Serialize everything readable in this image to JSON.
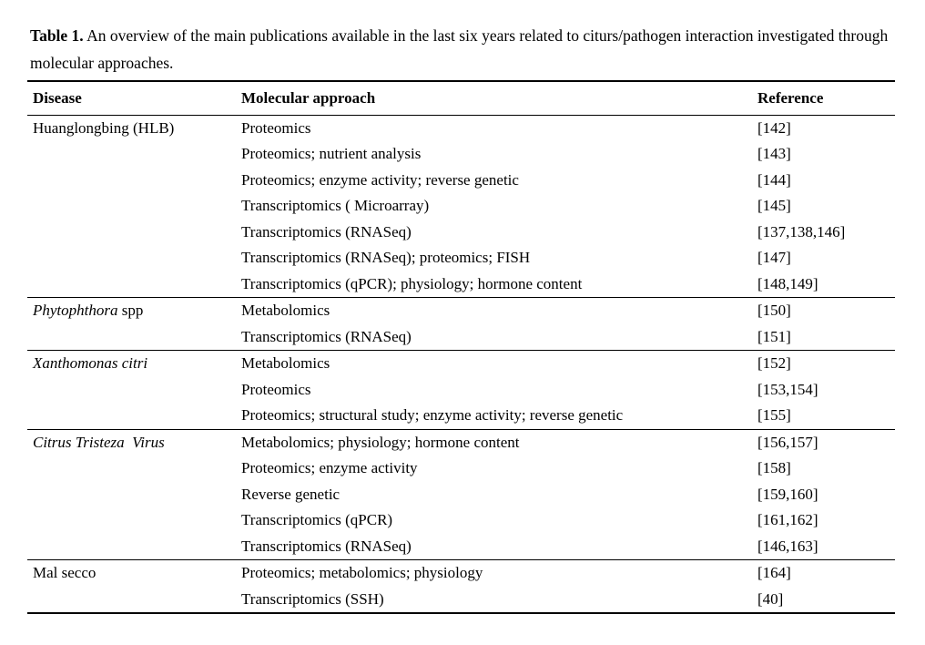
{
  "caption": {
    "label": "Table 1.",
    "text": " An overview of the main publications available in the last six years related to citurs/pathogen interaction investigated through molecular approaches."
  },
  "table": {
    "headers": [
      "Disease",
      "Molecular approach",
      "Reference"
    ],
    "sections": [
      {
        "disease": [
          {
            "text": "Huanglongbing (HLB)",
            "italic": false
          }
        ],
        "rows": [
          {
            "approach": "Proteomics",
            "reference": "[142]"
          },
          {
            "approach": "Proteomics; nutrient analysis",
            "reference": "[143]"
          },
          {
            "approach": "Proteomics; enzyme activity; reverse genetic",
            "reference": "[144]"
          },
          {
            "approach": "Transcriptomics ( Microarray)",
            "reference": "[145]"
          },
          {
            "approach": "Transcriptomics (RNASeq)",
            "reference": "[137,138,146]"
          },
          {
            "approach": "Transcriptomics (RNASeq); proteomics; FISH",
            "reference": "[147]"
          },
          {
            "approach": "Transcriptomics (qPCR); physiology; hormone content",
            "reference": "[148,149]"
          }
        ]
      },
      {
        "disease": [
          {
            "text": "Phytophthora",
            "italic": true
          },
          {
            "text": " spp",
            "italic": false
          }
        ],
        "rows": [
          {
            "approach": "Metabolomics",
            "reference": "[150]"
          },
          {
            "approach": "Transcriptomics (RNASeq)",
            "reference": "[151]"
          }
        ]
      },
      {
        "disease": [
          {
            "text": "Xanthomonas citri",
            "italic": true
          }
        ],
        "rows": [
          {
            "approach": "Metabolomics",
            "reference": "[152]"
          },
          {
            "approach": "Proteomics",
            "reference": "[153,154]"
          },
          {
            "approach": "Proteomics; structural study; enzyme activity; reverse genetic",
            "reference": "[155]"
          }
        ]
      },
      {
        "disease": [
          {
            "text": "Citrus Tristeza  Virus",
            "italic": true
          }
        ],
        "rows": [
          {
            "approach": "Metabolomics; physiology; hormone content",
            "reference": "[156,157]"
          },
          {
            "approach": "Proteomics; enzyme activity",
            "reference": "[158]"
          },
          {
            "approach": "Reverse genetic",
            "reference": "[159,160]"
          },
          {
            "approach": "Transcriptomics (qPCR)",
            "reference": "[161,162]"
          },
          {
            "approach": "Transcriptomics (RNASeq)",
            "reference": "[146,163]"
          }
        ]
      },
      {
        "disease": [
          {
            "text": "Mal secco",
            "italic": false
          }
        ],
        "rows": [
          {
            "approach": "Proteomics; metabolomics; physiology",
            "reference": "[164]"
          },
          {
            "approach": "Transcriptomics (SSH)",
            "reference": "[40]"
          }
        ]
      }
    ]
  },
  "colors": {
    "text": "#000000",
    "background": "#ffffff",
    "rule": "#000000"
  }
}
